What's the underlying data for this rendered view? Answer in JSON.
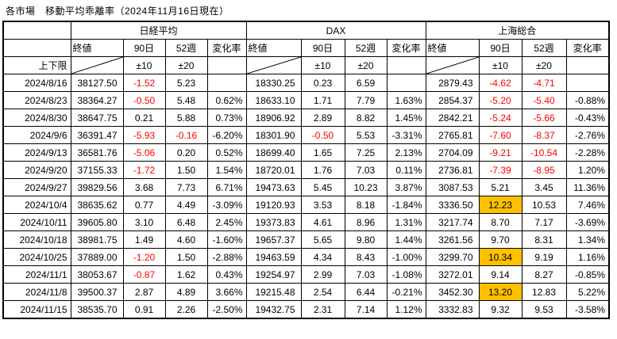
{
  "title": "各市場　移動平均乖離率（2024年11月16日現在）",
  "colors": {
    "negative_text": "#ff0000",
    "highlight_bg": "#ffc000",
    "text": "#000000",
    "border": "#000000",
    "background": "#ffffff"
  },
  "table": {
    "markets": [
      {
        "name": "日経平均"
      },
      {
        "name": "DAX"
      },
      {
        "name": "上海総合"
      }
    ],
    "columns": {
      "close": "終値",
      "dev90": "90日",
      "dev52": "52週",
      "change": "変化率"
    },
    "limits": {
      "label": "上下限",
      "dev90": "±10",
      "dev52": "±20"
    },
    "highlight_threshold": 10,
    "rows": [
      {
        "date": "2024/8/16",
        "markets": [
          [
            "38127.50",
            "-1.52",
            "5.23",
            ""
          ],
          [
            "18330.25",
            "0.23",
            "6.59",
            ""
          ],
          [
            "2879.43",
            "-4.62",
            "-4.71",
            ""
          ]
        ]
      },
      {
        "date": "2024/8/23",
        "markets": [
          [
            "38364.27",
            "-0.50",
            "5.48",
            "0.62%"
          ],
          [
            "18633.10",
            "1.71",
            "7.79",
            "1.63%"
          ],
          [
            "2854.37",
            "-5.20",
            "-5.40",
            "-0.88%"
          ]
        ]
      },
      {
        "date": "2024/8/30",
        "markets": [
          [
            "38647.75",
            "0.21",
            "5.88",
            "0.73%"
          ],
          [
            "18906.92",
            "2.89",
            "8.82",
            "1.45%"
          ],
          [
            "2842.21",
            "-5.24",
            "-5.66",
            "-0.43%"
          ]
        ]
      },
      {
        "date": "2024/9/6",
        "markets": [
          [
            "36391.47",
            "-5.93",
            "-0.16",
            "-6.20%"
          ],
          [
            "18301.90",
            "-0.50",
            "5.53",
            "-3.31%"
          ],
          [
            "2765.81",
            "-7.60",
            "-8.37",
            "-2.76%"
          ]
        ]
      },
      {
        "date": "2024/9/13",
        "markets": [
          [
            "36581.76",
            "-5.06",
            "0.20",
            "0.52%"
          ],
          [
            "18699.40",
            "1.65",
            "7.25",
            "2.13%"
          ],
          [
            "2704.09",
            "-9.21",
            "-10.54",
            "-2.28%"
          ]
        ]
      },
      {
        "date": "2024/9/20",
        "markets": [
          [
            "37155.33",
            "-1.72",
            "1.50",
            "1.54%"
          ],
          [
            "18720.01",
            "1.76",
            "7.03",
            "0.11%"
          ],
          [
            "2736.81",
            "-7.39",
            "-8.95",
            "1.20%"
          ]
        ]
      },
      {
        "date": "2024/9/27",
        "markets": [
          [
            "39829.56",
            "3.68",
            "7.73",
            "6.71%"
          ],
          [
            "19473.63",
            "5.45",
            "10.23",
            "3.87%"
          ],
          [
            "3087.53",
            "5.21",
            "3.45",
            "11.36%"
          ]
        ]
      },
      {
        "date": "2024/10/4",
        "markets": [
          [
            "38635.62",
            "0.77",
            "4.49",
            "-3.09%"
          ],
          [
            "19120.93",
            "3.53",
            "8.18",
            "-1.84%"
          ],
          [
            "3336.50",
            "12.23",
            "10.53",
            "7.46%"
          ]
        ]
      },
      {
        "date": "2024/10/11",
        "markets": [
          [
            "39605.80",
            "3.10",
            "6.48",
            "2.45%"
          ],
          [
            "19373.83",
            "4.61",
            "8.96",
            "1.31%"
          ],
          [
            "3217.74",
            "8.70",
            "7.17",
            "-3.69%"
          ]
        ]
      },
      {
        "date": "2024/10/18",
        "markets": [
          [
            "38981.75",
            "1.49",
            "4.60",
            "-1.60%"
          ],
          [
            "19657.37",
            "5.65",
            "9.80",
            "1.44%"
          ],
          [
            "3261.56",
            "9.70",
            "8.31",
            "1.34%"
          ]
        ]
      },
      {
        "date": "2024/10/25",
        "markets": [
          [
            "37889.00",
            "-1.20",
            "1.50",
            "-2.88%"
          ],
          [
            "19463.59",
            "4.34",
            "8.43",
            "-1.00%"
          ],
          [
            "3299.70",
            "10.34",
            "9.19",
            "1.16%"
          ]
        ]
      },
      {
        "date": "2024/11/1",
        "markets": [
          [
            "38053.67",
            "-0.87",
            "1.62",
            "0.43%"
          ],
          [
            "19254.97",
            "2.99",
            "7.03",
            "-1.08%"
          ],
          [
            "3272.01",
            "9.14",
            "8.27",
            "-0.85%"
          ]
        ]
      },
      {
        "date": "2024/11/8",
        "markets": [
          [
            "39500.37",
            "2.87",
            "4.89",
            "3.66%"
          ],
          [
            "19215.48",
            "2.54",
            "6.44",
            "-0.21%"
          ],
          [
            "3452.30",
            "13.20",
            "12.83",
            "5.22%"
          ]
        ]
      },
      {
        "date": "2024/11/15",
        "markets": [
          [
            "38535.70",
            "0.91",
            "2.26",
            "-2.50%"
          ],
          [
            "19432.75",
            "2.31",
            "7.14",
            "1.12%"
          ],
          [
            "3332.83",
            "9.32",
            "9.53",
            "-3.58%"
          ]
        ]
      }
    ]
  }
}
